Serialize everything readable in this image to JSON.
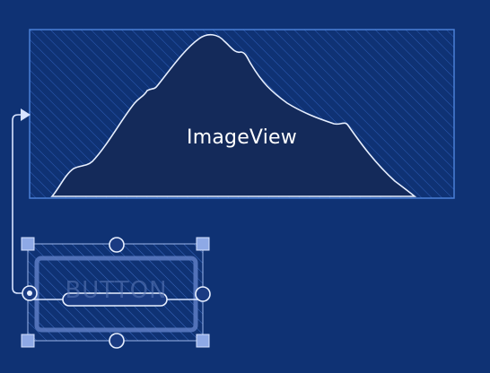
{
  "imageview": {
    "label": "ImageView"
  },
  "button": {
    "label": "BUTTON"
  },
  "colors": {
    "background": "#0f3274",
    "blueprint_line": "#4a7fd6",
    "mountain_fill": "#142a5a",
    "mountain_stroke": "#e7efff",
    "handle_fill": "#8ea9e6",
    "handle_stroke": "#d7e3ff"
  },
  "icons": {
    "constraint_arrow": "arrow-right-icon",
    "resize_handle": "square-handle-icon",
    "constraint_anchor": "circle-anchor-icon",
    "baseline_handle": "rounded-bar-handle-icon"
  }
}
